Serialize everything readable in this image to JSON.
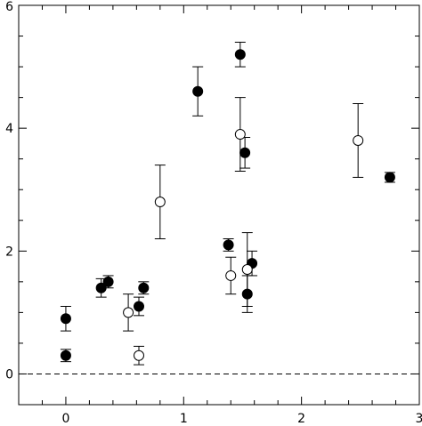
{
  "chart_data": {
    "type": "scatter",
    "title": "",
    "xlabel": "",
    "ylabel": "",
    "xlim": [
      -0.4,
      3.0
    ],
    "ylim": [
      -0.5,
      6.0
    ],
    "x_ticks": [
      0,
      1,
      2,
      3
    ],
    "x_tick_labels": [
      "0",
      "1",
      "2",
      "3"
    ],
    "y_ticks": [
      0,
      2,
      4,
      6
    ],
    "y_tick_labels": [
      "0",
      "2",
      "4",
      "6"
    ],
    "reference_line_y": 0,
    "grid": false,
    "legend": "none",
    "colors": {
      "axis": "#000000",
      "marker": "#000000",
      "background": "#ffffff"
    },
    "series": [
      {
        "marker": "filled-circle",
        "points": [
          {
            "x": 0.0,
            "y": 0.9,
            "err": 0.2
          },
          {
            "x": 0.0,
            "y": 0.3,
            "err": 0.1
          },
          {
            "x": 0.3,
            "y": 1.4,
            "err": 0.15
          },
          {
            "x": 0.36,
            "y": 1.5,
            "err": 0.1
          },
          {
            "x": 0.62,
            "y": 1.1,
            "err": 0.15
          },
          {
            "x": 0.66,
            "y": 1.4,
            "err": 0.1
          },
          {
            "x": 1.12,
            "y": 4.6,
            "err": 0.4
          },
          {
            "x": 1.38,
            "y": 2.1,
            "err": 0.1
          },
          {
            "x": 1.48,
            "y": 5.2,
            "err": 0.2
          },
          {
            "x": 1.52,
            "y": 3.6,
            "err": 0.25
          },
          {
            "x": 1.54,
            "y": 1.3,
            "err": 0.3
          },
          {
            "x": 1.58,
            "y": 1.8,
            "err": 0.2
          },
          {
            "x": 2.75,
            "y": 3.2,
            "err": 0.08
          }
        ]
      },
      {
        "marker": "open-circle",
        "points": [
          {
            "x": 0.53,
            "y": 1.0,
            "err": 0.3
          },
          {
            "x": 0.62,
            "y": 0.3,
            "err": 0.15
          },
          {
            "x": 0.8,
            "y": 2.8,
            "err": 0.6
          },
          {
            "x": 1.4,
            "y": 1.6,
            "err": 0.3
          },
          {
            "x": 1.48,
            "y": 3.9,
            "err": 0.6
          },
          {
            "x": 1.54,
            "y": 1.7,
            "err": 0.6
          },
          {
            "x": 2.48,
            "y": 3.8,
            "err": 0.6
          }
        ]
      }
    ]
  }
}
